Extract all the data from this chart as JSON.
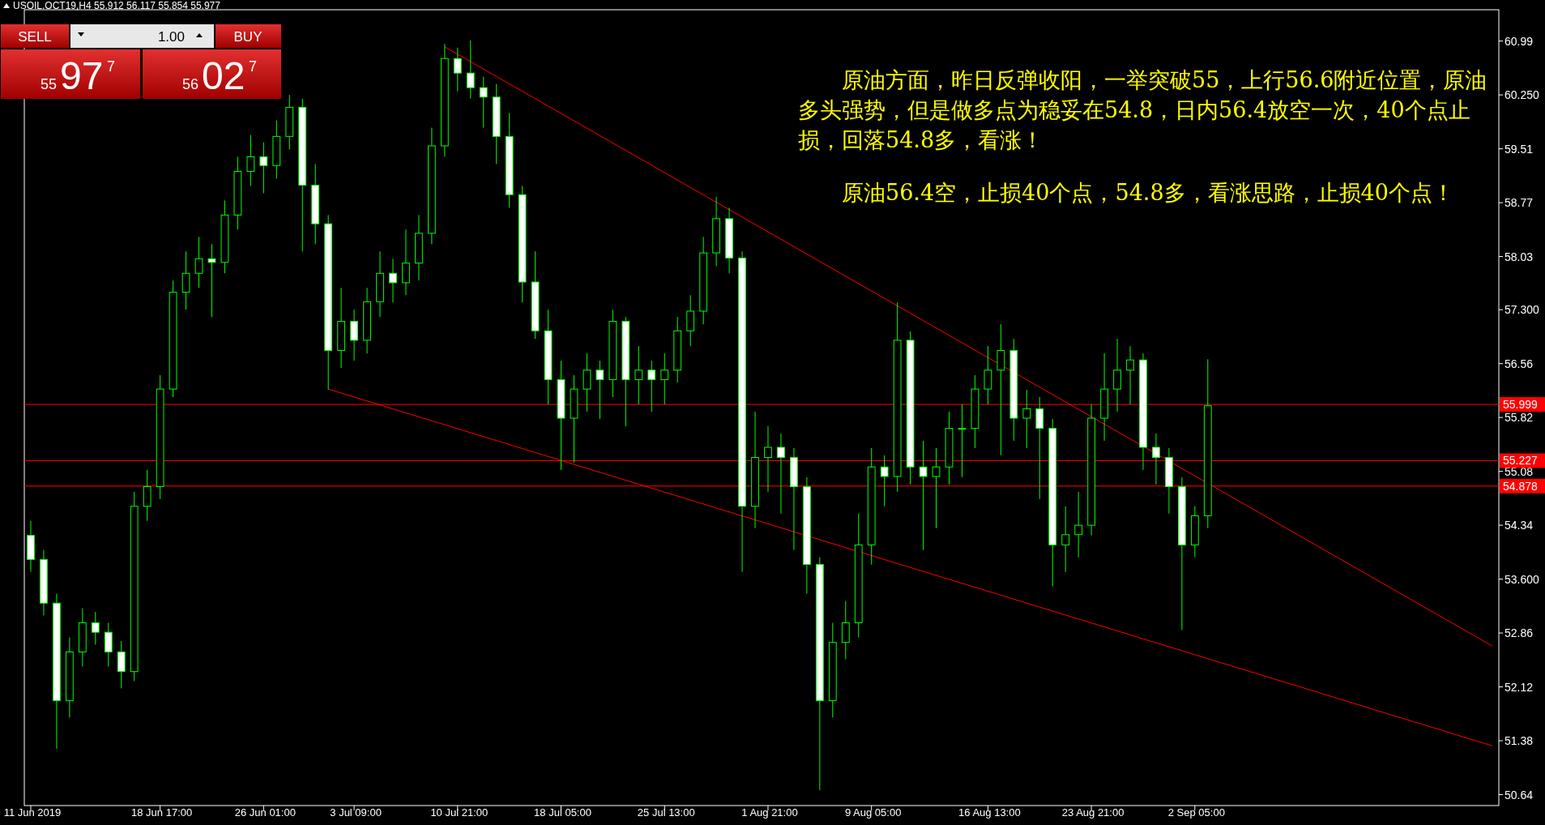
{
  "chart_data": {
    "type": "candlestick",
    "title": "USOIL.OCT19,H4 55.912 56.117 55.854 55.977",
    "categories": [
      "11 Jun 2019",
      null,
      null,
      null,
      null,
      null,
      null,
      null,
      null,
      null,
      "18 Jun 17:00",
      null,
      null,
      null,
      null,
      null,
      null,
      null,
      "26 Jun 01:00",
      null,
      null,
      null,
      null,
      null,
      null,
      "3 Jul 09:00",
      null,
      null,
      null,
      null,
      null,
      null,
      null,
      "10 Jul 21:00",
      null,
      null,
      null,
      null,
      null,
      null,
      null,
      "18 Jul 05:00",
      null,
      null,
      null,
      null,
      null,
      null,
      null,
      "25 Jul 13:00",
      null,
      null,
      null,
      null,
      null,
      null,
      null,
      "1 Aug 21:00",
      null,
      null,
      null,
      null,
      null,
      null,
      null,
      "9 Aug 05:00",
      null,
      null,
      null,
      null,
      null,
      null,
      null,
      null,
      "16 Aug 13:00",
      null,
      null,
      null,
      null,
      null,
      null,
      null,
      "23 Aug 21:00",
      null,
      null,
      null,
      null,
      null,
      null,
      null,
      "2 Sep 05:00",
      null,
      null,
      null,
      null,
      null,
      null,
      null,
      null,
      null,
      null,
      null,
      null,
      null,
      null,
      null,
      null,
      null,
      null,
      null,
      null,
      null,
      null,
      null
    ],
    "series": [
      {
        "type": "candlestick",
        "color": "#00ff00",
        "ohlc": [
          [
            54.2,
            54.4,
            53.7,
            53.87
          ],
          [
            53.87,
            54.0,
            53.1,
            53.27
          ],
          [
            53.27,
            53.4,
            51.27,
            51.93
          ],
          [
            51.93,
            52.8,
            51.7,
            52.6
          ],
          [
            52.6,
            53.2,
            52.4,
            53.0
          ],
          [
            53.0,
            53.15,
            52.7,
            52.87
          ],
          [
            52.87,
            53.0,
            52.4,
            52.6
          ],
          [
            52.6,
            52.75,
            52.1,
            52.33
          ],
          [
            52.33,
            54.8,
            52.2,
            54.6
          ],
          [
            54.6,
            55.1,
            54.4,
            54.87
          ],
          [
            54.87,
            56.4,
            54.7,
            56.21
          ],
          [
            56.21,
            57.7,
            56.1,
            57.54
          ],
          [
            57.54,
            58.1,
            57.3,
            57.8
          ],
          [
            57.8,
            58.3,
            57.6,
            58.0
          ],
          [
            58.0,
            58.2,
            57.2,
            57.95
          ],
          [
            57.95,
            58.8,
            57.8,
            58.6
          ],
          [
            58.6,
            59.4,
            58.4,
            59.2
          ],
          [
            59.2,
            59.7,
            59.0,
            59.4
          ],
          [
            59.4,
            59.6,
            58.9,
            59.28
          ],
          [
            59.28,
            59.9,
            59.1,
            59.68
          ],
          [
            59.68,
            60.25,
            59.5,
            60.08
          ],
          [
            60.08,
            60.2,
            58.1,
            59.01
          ],
          [
            59.01,
            59.3,
            58.2,
            58.48
          ],
          [
            58.48,
            58.6,
            56.2,
            56.74
          ],
          [
            56.74,
            57.6,
            56.5,
            57.14
          ],
          [
            57.14,
            57.3,
            56.6,
            56.88
          ],
          [
            56.88,
            57.6,
            56.7,
            57.41
          ],
          [
            57.41,
            58.1,
            57.2,
            57.8
          ],
          [
            57.8,
            58.0,
            57.4,
            57.67
          ],
          [
            57.67,
            58.4,
            57.5,
            57.94
          ],
          [
            57.94,
            58.6,
            57.7,
            58.35
          ],
          [
            58.35,
            59.8,
            58.2,
            59.55
          ],
          [
            59.55,
            60.95,
            59.4,
            60.75
          ],
          [
            60.75,
            60.9,
            60.3,
            60.55
          ],
          [
            60.55,
            61.0,
            60.2,
            60.35
          ],
          [
            60.35,
            60.5,
            59.8,
            60.22
          ],
          [
            60.22,
            60.4,
            59.3,
            59.68
          ],
          [
            59.68,
            60.0,
            58.7,
            58.88
          ],
          [
            58.88,
            59.0,
            57.4,
            57.68
          ],
          [
            57.68,
            58.1,
            56.9,
            57.01
          ],
          [
            57.01,
            57.3,
            56.0,
            56.34
          ],
          [
            56.34,
            56.6,
            55.1,
            55.81
          ],
          [
            55.81,
            56.4,
            55.2,
            56.21
          ],
          [
            56.21,
            56.7,
            55.9,
            56.47
          ],
          [
            56.47,
            56.6,
            55.8,
            56.34
          ],
          [
            56.34,
            57.3,
            56.1,
            57.14
          ],
          [
            57.14,
            57.2,
            55.7,
            56.34
          ],
          [
            56.34,
            56.8,
            56.0,
            56.47
          ],
          [
            56.47,
            56.6,
            55.9,
            56.34
          ],
          [
            56.34,
            56.7,
            56.0,
            56.47
          ],
          [
            56.47,
            57.2,
            56.3,
            57.01
          ],
          [
            57.01,
            57.5,
            56.8,
            57.28
          ],
          [
            57.28,
            58.3,
            57.1,
            58.08
          ],
          [
            58.08,
            58.85,
            57.9,
            58.55
          ],
          [
            58.55,
            58.7,
            57.8,
            58.01
          ],
          [
            58.01,
            58.1,
            53.7,
            54.6
          ],
          [
            54.6,
            55.9,
            54.3,
            55.27
          ],
          [
            55.27,
            55.7,
            54.8,
            55.41
          ],
          [
            55.41,
            55.6,
            54.5,
            55.27
          ],
          [
            55.27,
            55.4,
            54.0,
            54.87
          ],
          [
            54.87,
            55.0,
            53.4,
            53.8
          ],
          [
            53.8,
            53.9,
            50.7,
            51.93
          ],
          [
            51.93,
            53.0,
            51.7,
            52.73
          ],
          [
            52.73,
            53.3,
            52.5,
            53.0
          ],
          [
            53.0,
            54.5,
            52.8,
            54.07
          ],
          [
            54.07,
            55.4,
            53.8,
            55.14
          ],
          [
            55.14,
            55.3,
            54.6,
            55.01
          ],
          [
            55.01,
            57.4,
            54.8,
            56.88
          ],
          [
            56.88,
            57.0,
            54.9,
            55.14
          ],
          [
            55.14,
            55.5,
            54.0,
            55.01
          ],
          [
            55.01,
            55.4,
            54.3,
            55.14
          ],
          [
            55.14,
            55.9,
            54.9,
            55.67
          ],
          [
            55.67,
            56.0,
            55.0,
            55.67
          ],
          [
            55.67,
            56.4,
            55.4,
            56.21
          ],
          [
            56.21,
            56.8,
            56.0,
            56.47
          ],
          [
            56.47,
            57.1,
            55.3,
            56.74
          ],
          [
            56.74,
            56.9,
            55.5,
            55.81
          ],
          [
            55.81,
            56.2,
            55.4,
            55.94
          ],
          [
            55.94,
            56.1,
            54.7,
            55.67
          ],
          [
            55.67,
            55.8,
            53.5,
            54.07
          ],
          [
            54.07,
            54.6,
            53.7,
            54.21
          ],
          [
            54.21,
            54.8,
            53.9,
            54.34
          ],
          [
            54.34,
            56.0,
            54.2,
            55.81
          ],
          [
            55.81,
            56.7,
            55.5,
            56.21
          ],
          [
            56.21,
            56.9,
            55.9,
            56.47
          ],
          [
            56.47,
            56.8,
            56.0,
            56.61
          ],
          [
            56.61,
            56.7,
            55.1,
            55.41
          ],
          [
            55.41,
            55.6,
            54.9,
            55.27
          ],
          [
            55.27,
            55.4,
            54.5,
            54.87
          ],
          [
            54.87,
            55.0,
            52.9,
            54.07
          ],
          [
            54.07,
            54.6,
            53.9,
            54.47
          ],
          [
            54.47,
            56.62,
            54.3,
            55.98
          ],
          null,
          null,
          null,
          null,
          null,
          null,
          null,
          null,
          null,
          null,
          null,
          null,
          null,
          null,
          null,
          null,
          null,
          null,
          null,
          null,
          null,
          null
        ]
      },
      {
        "type": "line",
        "color": "#ff0000",
        "values": [
          null,
          null,
          null,
          null,
          null,
          null,
          null,
          null,
          null,
          null,
          null,
          null,
          null,
          null,
          null,
          null,
          null,
          null,
          null,
          null,
          null,
          null,
          null,
          null,
          null,
          null,
          null,
          null,
          null,
          null,
          null,
          null,
          60.91,
          null,
          null,
          null,
          null,
          null,
          null,
          null,
          null,
          null,
          null,
          null,
          null,
          null,
          null,
          null,
          null,
          null,
          null,
          null,
          null,
          null,
          null,
          null,
          null,
          null,
          null,
          null,
          null,
          null,
          null,
          null,
          null,
          null,
          null,
          null,
          null,
          null,
          null,
          null,
          null,
          null,
          null,
          null,
          null,
          null,
          null,
          null,
          null,
          null,
          null,
          null,
          null,
          null,
          null,
          null,
          null,
          null,
          null,
          null,
          null,
          null,
          null,
          null,
          null,
          null,
          null,
          null,
          null,
          null,
          null,
          null,
          null,
          null,
          null,
          null,
          null,
          null,
          null,
          null,
          null,
          52.68
        ]
      },
      {
        "type": "line",
        "color": "#ff0000",
        "values": [
          null,
          null,
          null,
          null,
          null,
          null,
          null,
          null,
          null,
          null,
          null,
          null,
          null,
          null,
          null,
          null,
          null,
          null,
          null,
          null,
          null,
          null,
          null,
          56.21,
          null,
          null,
          null,
          null,
          null,
          null,
          null,
          null,
          null,
          null,
          null,
          null,
          null,
          null,
          null,
          null,
          null,
          null,
          null,
          null,
          null,
          null,
          null,
          null,
          null,
          null,
          null,
          null,
          null,
          null,
          null,
          null,
          null,
          null,
          null,
          null,
          null,
          null,
          null,
          null,
          null,
          null,
          null,
          null,
          null,
          null,
          null,
          null,
          null,
          null,
          null,
          null,
          null,
          null,
          null,
          null,
          null,
          null,
          null,
          null,
          null,
          null,
          null,
          null,
          null,
          null,
          null,
          null,
          null,
          null,
          null,
          null,
          null,
          null,
          null,
          null,
          null,
          null,
          null,
          null,
          null,
          null,
          null,
          null,
          null,
          null,
          null,
          null,
          null,
          51.31
        ]
      }
    ],
    "ylim": [
      50.49,
      61.42
    ],
    "yticks": [
      60.99,
      {
        "value": 60.25,
        "label": "60.250"
      },
      59.51,
      58.77,
      58.03,
      {
        "value": 57.3,
        "label": "57.300"
      },
      56.56,
      55.82,
      55.08,
      54.34,
      {
        "value": 53.6,
        "label": "53.600"
      },
      52.86,
      52.12,
      51.38,
      50.64
    ],
    "ref_lines": [
      {
        "axis": "y",
        "value": 55.999,
        "label": "55.999",
        "color": "#ff0000"
      },
      {
        "axis": "y",
        "value": 55.227,
        "label": "55.227",
        "color": "#ff0000"
      },
      {
        "axis": "y",
        "value": 54.878,
        "label": "54.878",
        "color": "#ff0000"
      }
    ],
    "annotations": [
      "　原油方面，昨日反弹收阳，一举突破55，上行56.6附近位置，原油多头强势，但是做多点为稳妥在54.8，日内56.4放空一次，40个点止损，回落54.8多，看涨！",
      "　原油56.4空，止损40个点，54.8多，看涨思路，止损40个点！",
      "SELL",
      "1.00",
      "BUY",
      "55",
      "97",
      "7",
      "56",
      "02",
      "7"
    ]
  }
}
